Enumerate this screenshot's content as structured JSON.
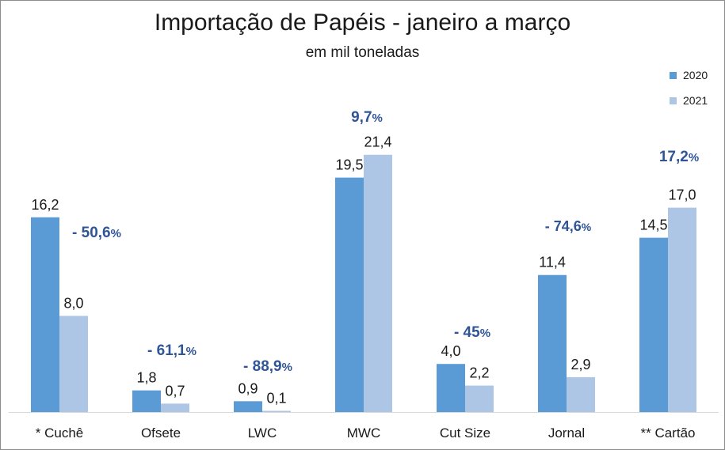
{
  "chart_data": {
    "type": "bar",
    "title": "Importação de Papéis - janeiro a março",
    "subtitle": "em mil toneladas",
    "categories": [
      "* Cuchê",
      "Ofsete",
      "LWC",
      "MWC",
      "Cut Size",
      "Jornal",
      "** Cartão"
    ],
    "series": [
      {
        "name": "2020",
        "color": "#5b9bd5",
        "values": [
          16.2,
          1.8,
          0.9,
          19.5,
          4.0,
          11.4,
          14.5
        ],
        "labels": [
          "16,2",
          "1,8",
          "0,9",
          "19,5",
          "4,0",
          "11,4",
          "14,5"
        ]
      },
      {
        "name": "2021",
        "color": "#adc6e5",
        "values": [
          8.0,
          0.7,
          0.1,
          21.4,
          2.2,
          2.9,
          17.0
        ],
        "labels": [
          "8,0",
          "0,7",
          "0,1",
          "21,4",
          "2,2",
          "2,9",
          "17,0"
        ]
      }
    ],
    "changes": [
      {
        "num": "- 50,6",
        "pct": "%"
      },
      {
        "num": "- 61,1",
        "pct": "%"
      },
      {
        "num": "- 88,9",
        "pct": "%"
      },
      {
        "num": "9,7",
        "pct": "%"
      },
      {
        "num": "- 45",
        "pct": "%"
      },
      {
        "num": "- 74,6",
        "pct": "%"
      },
      {
        "num": "17,2",
        "pct": "%"
      }
    ],
    "xlabel": "",
    "ylabel": "",
    "ylim": [
      0,
      22
    ],
    "grid": false,
    "legend_position": "top-right"
  }
}
